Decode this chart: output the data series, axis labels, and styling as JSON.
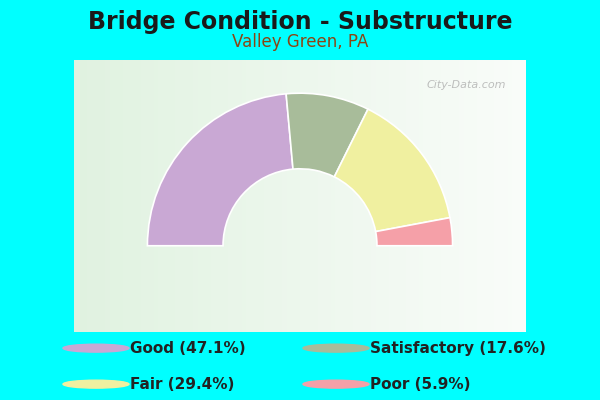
{
  "title": "Bridge Condition - Substructure",
  "subtitle": "Valley Green, PA",
  "background_color": "#00FFFF",
  "chart_bg_color_center": "#e8f5e0",
  "chart_bg_color_edge": "#f0f8e8",
  "segments": [
    {
      "label": "Good",
      "pct": 47.1,
      "color": "#c9a8d4"
    },
    {
      "label": "Satisfactory",
      "pct": 17.6,
      "color": "#a8bc9a"
    },
    {
      "label": "Fair",
      "pct": 29.4,
      "color": "#f0f0a0"
    },
    {
      "label": "Poor",
      "pct": 5.9,
      "color": "#f5a0a8"
    }
  ],
  "legend_items": [
    {
      "label": "Good (47.1%)",
      "color": "#c9a8d4",
      "col": 0,
      "row": 0
    },
    {
      "label": "Satisfactory (17.6%)",
      "color": "#a8bc9a",
      "col": 1,
      "row": 0
    },
    {
      "label": "Fair (29.4%)",
      "color": "#f0f0a0",
      "col": 0,
      "row": 1
    },
    {
      "label": "Poor (5.9%)",
      "color": "#f5a0a8",
      "col": 1,
      "row": 1
    }
  ],
  "watermark": "City-Data.com",
  "title_fontsize": 17,
  "subtitle_fontsize": 12,
  "title_color": "#1a1a1a",
  "subtitle_color": "#8b4513",
  "legend_fontsize": 11,
  "outer_r": 1.15,
  "inner_r": 0.58
}
